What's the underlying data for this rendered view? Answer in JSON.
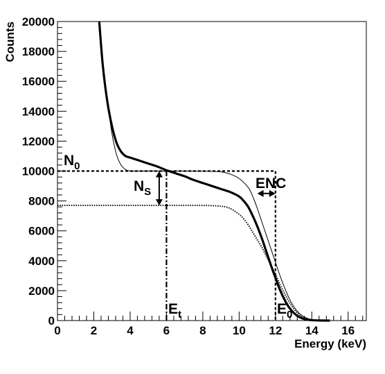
{
  "chart_data": {
    "type": "line",
    "xlabel": "Energy (keV)",
    "ylabel": "Counts",
    "xlim": [
      0,
      17
    ],
    "ylim": [
      0,
      20000
    ],
    "x_ticks": [
      "0",
      "2",
      "4",
      "6",
      "8",
      "10",
      "12",
      "14",
      "16"
    ],
    "y_ticks": [
      "0",
      "2000",
      "4000",
      "6000",
      "8000",
      "10000",
      "12000",
      "14000",
      "16000",
      "18000",
      "20000"
    ],
    "grid": false,
    "legend": "none",
    "series": [
      {
        "style": "thick-solid",
        "x": [
          2.3,
          2.5,
          2.75,
          3.0,
          3.25,
          3.5,
          3.75,
          4.0,
          4.5,
          5.0,
          5.5,
          6.0,
          6.5,
          7.0,
          7.5,
          8.0,
          8.5,
          9.0,
          9.5,
          10.0,
          10.25,
          10.5,
          10.75,
          11.0,
          11.25,
          11.5,
          11.75,
          12.0,
          12.25,
          12.5,
          12.75,
          13.0,
          13.25,
          13.5,
          13.75,
          14.0,
          14.5,
          15.0
        ],
        "y": [
          20000,
          17000,
          14600,
          13000,
          11900,
          11300,
          11000,
          10900,
          10700,
          10500,
          10300,
          10050,
          9850,
          9650,
          9400,
          9200,
          9000,
          8800,
          8600,
          8300,
          8000,
          7600,
          7000,
          6300,
          5500,
          4600,
          3700,
          2850,
          2050,
          1400,
          880,
          520,
          280,
          140,
          60,
          25,
          5,
          0
        ]
      },
      {
        "style": "thin-solid",
        "x": [
          2.3,
          2.5,
          2.75,
          3.0,
          3.25,
          3.5,
          3.75,
          4.0,
          4.5,
          5.0,
          6.0,
          7.0,
          8.0,
          9.0,
          9.5,
          10.0,
          10.5,
          10.75,
          11.0,
          11.25,
          11.5,
          11.75,
          12.0,
          12.25,
          12.5,
          12.75,
          13.0,
          13.25,
          13.5,
          13.75,
          14.0,
          14.5,
          15.0
        ],
        "y": [
          20000,
          17000,
          14600,
          12500,
          11100,
          10400,
          10100,
          10000,
          10000,
          10000,
          10000,
          10000,
          9990,
          9950,
          9800,
          9500,
          8900,
          8300,
          7500,
          6600,
          5700,
          4800,
          3900,
          3000,
          2200,
          1500,
          950,
          550,
          300,
          150,
          70,
          15,
          0
        ]
      },
      {
        "style": "dotted",
        "x": [
          0,
          1,
          2,
          3,
          4,
          5,
          6,
          7,
          8,
          9,
          9.5,
          10.0,
          10.25,
          10.5,
          10.75,
          11.0,
          11.25,
          11.5,
          11.75,
          12.0,
          12.25,
          12.5,
          12.75,
          13.0,
          13.25,
          13.5,
          13.75,
          14.0,
          14.5,
          15.0
        ],
        "y": [
          7700,
          7700,
          7700,
          7700,
          7700,
          7700,
          7700,
          7700,
          7700,
          7650,
          7500,
          7100,
          6800,
          6400,
          5900,
          5400,
          4900,
          4300,
          3700,
          3100,
          2400,
          1800,
          1250,
          800,
          460,
          240,
          110,
          45,
          8,
          0
        ]
      },
      {
        "style": "dashed-step",
        "x": [
          0,
          12,
          12
        ],
        "y": [
          10000,
          10000,
          0
        ]
      }
    ],
    "reference_lines": [
      {
        "style": "dash-dot",
        "x": [
          6,
          6
        ],
        "y": [
          0,
          10000
        ]
      }
    ],
    "arrows": [
      {
        "label": "N_S",
        "x": [
          5.6,
          5.6
        ],
        "y": [
          10000,
          7700
        ]
      },
      {
        "label": "ENC",
        "x": [
          11.0,
          12.0
        ],
        "y": [
          8500,
          8500
        ]
      }
    ],
    "annotations": {
      "n0": {
        "main": "N",
        "sub": "0"
      },
      "ns": {
        "main": "N",
        "sub": "S"
      },
      "enc": "ENC",
      "et": {
        "main": "E",
        "sub": "t"
      },
      "e0": {
        "main": "E",
        "sub": "0"
      }
    }
  }
}
